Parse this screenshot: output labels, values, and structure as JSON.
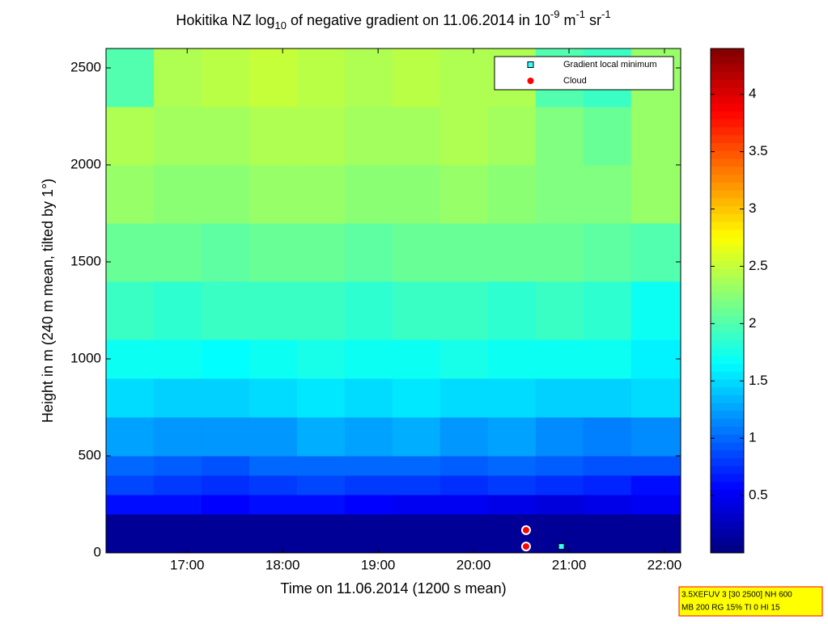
{
  "chart_data": {
    "type": "heatmap",
    "title": [
      {
        "text": "Hokitika NZ log",
        "script": "normal"
      },
      {
        "text": "10",
        "script": "sub"
      },
      {
        "text": " of negative gradient on 11.06.2014 in 10",
        "script": "normal"
      },
      {
        "text": "-9",
        "script": "super"
      },
      {
        "text": " m",
        "script": "normal"
      },
      {
        "text": "-1",
        "script": "super"
      },
      {
        "text": " sr",
        "script": "normal"
      },
      {
        "text": "-1",
        "script": "super"
      }
    ],
    "x_label": "Time on 11.06.2014 (1200 s mean)",
    "y_label": "Height in m (240 m mean, tilted by 1°)",
    "xlim": [
      16.15,
      22.17
    ],
    "xticks": [
      {
        "value": 17,
        "label": "17:00"
      },
      {
        "value": 18,
        "label": "18:00"
      },
      {
        "value": 19,
        "label": "19:00"
      },
      {
        "value": 20,
        "label": "20:00"
      },
      {
        "value": 21,
        "label": "21:00"
      },
      {
        "value": 22,
        "label": "22:00"
      }
    ],
    "ylim": [
      0,
      2600
    ],
    "yticks": [
      0,
      500,
      1000,
      1500,
      2000,
      2500
    ],
    "colormap": "jet",
    "clim": [
      0,
      4.4
    ],
    "cticks": [
      0.5,
      1,
      1.5,
      2,
      2.5,
      3,
      3.5,
      4
    ],
    "x_edges": [
      16.15,
      16.65,
      17.15,
      17.65,
      18.15,
      18.65,
      19.15,
      19.65,
      20.15,
      20.65,
      21.15,
      21.65,
      22.17
    ],
    "y_edges": [
      0,
      200,
      300,
      400,
      500,
      700,
      900,
      1100,
      1400,
      1700,
      2000,
      2300,
      2600
    ],
    "z": [
      [
        0.1,
        0.1,
        0.1,
        0.1,
        0.1,
        0.1,
        0.1,
        0.1,
        0.1,
        0.1,
        0.1,
        0.1
      ],
      [
        0.6,
        0.6,
        0.55,
        0.6,
        0.6,
        0.55,
        0.5,
        0.5,
        0.45,
        0.4,
        0.45,
        0.5
      ],
      [
        0.85,
        0.8,
        0.75,
        0.8,
        0.85,
        0.8,
        0.8,
        0.75,
        0.8,
        0.75,
        0.7,
        0.6
      ],
      [
        1.0,
        0.95,
        0.9,
        1.0,
        1.0,
        1.0,
        1.0,
        0.95,
        1.0,
        0.95,
        0.9,
        0.9
      ],
      [
        1.25,
        1.2,
        1.2,
        1.2,
        1.3,
        1.25,
        1.3,
        1.2,
        1.25,
        1.15,
        1.1,
        1.15
      ],
      [
        1.5,
        1.45,
        1.45,
        1.5,
        1.55,
        1.5,
        1.55,
        1.5,
        1.5,
        1.45,
        1.45,
        1.5
      ],
      [
        1.7,
        1.7,
        1.65,
        1.7,
        1.75,
        1.7,
        1.7,
        1.75,
        1.7,
        1.7,
        1.7,
        1.6
      ],
      [
        1.9,
        1.85,
        1.9,
        1.9,
        1.9,
        1.85,
        1.9,
        1.9,
        1.85,
        1.9,
        1.85,
        1.7
      ],
      [
        2.1,
        2.1,
        2.05,
        2.1,
        2.1,
        2.05,
        2.1,
        2.1,
        2.1,
        2.1,
        2.05,
        2.0
      ],
      [
        2.3,
        2.25,
        2.25,
        2.3,
        2.3,
        2.25,
        2.25,
        2.3,
        2.25,
        2.2,
        2.2,
        2.3
      ],
      [
        2.4,
        2.35,
        2.35,
        2.4,
        2.4,
        2.35,
        2.35,
        2.4,
        2.35,
        2.2,
        2.1,
        2.3
      ],
      [
        2.0,
        2.4,
        2.45,
        2.5,
        2.45,
        2.4,
        2.45,
        2.4,
        2.4,
        2.0,
        1.9,
        2.3
      ]
    ],
    "series": [
      {
        "name": "Gradient local minimum",
        "marker": "square",
        "color": "#33ffff",
        "x": [
          20.92
        ],
        "values": [
          33
        ]
      },
      {
        "name": "Cloud",
        "marker": "circle",
        "color": "#ff0000",
        "x": [
          20.55,
          20.55
        ],
        "values": [
          117,
          33
        ]
      }
    ],
    "info_box": [
      "3.5XEFUV 3 [30 2500] NH 600",
      "MB 200 RG 15% TI 0 HI 15"
    ]
  }
}
